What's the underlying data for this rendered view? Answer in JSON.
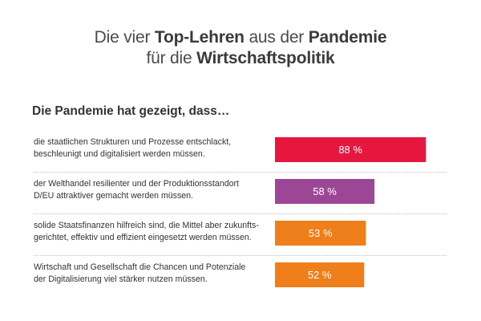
{
  "title": {
    "line1": [
      "Die vier ",
      "Top-Lehren",
      " aus der ",
      "Pandemie"
    ],
    "line2": [
      "für die ",
      "Wirtschaftspolitik"
    ]
  },
  "subtitle": "Die Pandemie hat gezeigt, dass…",
  "chart_data": {
    "type": "bar",
    "orientation": "horizontal",
    "unit": "%",
    "xlim": [
      0,
      100
    ],
    "grid": false,
    "categories": [
      [
        "die staatlichen Strukturen und Prozesse entschlackt,",
        "beschleunigt und digitalisiert werden müssen."
      ],
      [
        "der Welthandel resilienter und der Produktionsstandort",
        "D/EU attraktiver gemacht werden müssen."
      ],
      [
        "solide Staatsfinanzen hilfreich sind, die Mittel aber zukunfts-",
        "gerichtet, effektiv und effizient eingesetzt werden müssen."
      ],
      [
        "Wirtschaft und Gesellschaft die Chancen und Potenziale",
        "der Digitalisierung viel stärker nutzen müssen."
      ]
    ],
    "values": [
      88,
      58,
      53,
      52
    ],
    "value_labels": [
      "88 %",
      "58 %",
      "53 %",
      "52 %"
    ],
    "colors": [
      "#e5173f",
      "#9c4796",
      "#ee7f1b",
      "#ee7f1b"
    ]
  }
}
